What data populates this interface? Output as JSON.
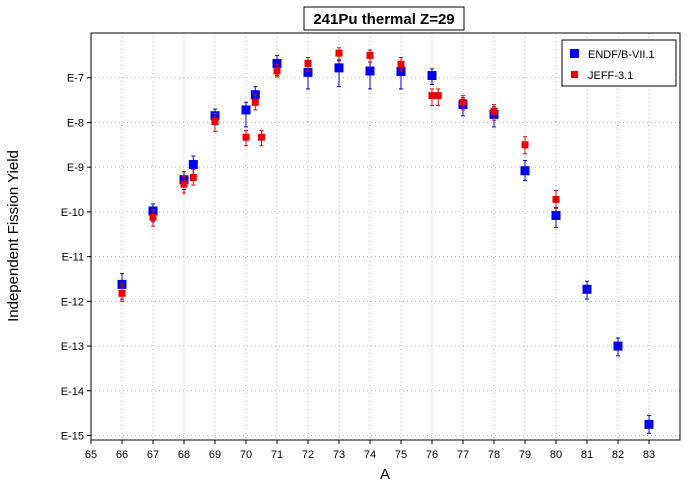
{
  "chart_data": {
    "type": "scatter",
    "title": "241Pu thermal Z=29",
    "xlabel": "A",
    "ylabel": "Independent Fission Yield",
    "xlim": [
      65,
      84
    ],
    "ylim": [
      -15.1,
      -6.0
    ],
    "y_scale": "log",
    "x_ticks": [
      "65",
      "66",
      "67",
      "68",
      "69",
      "70",
      "71",
      "72",
      "73",
      "74",
      "75",
      "76",
      "77",
      "78",
      "79",
      "80",
      "81",
      "82",
      "83"
    ],
    "y_ticks": [
      {
        "exp": -7,
        "label": "E-7"
      },
      {
        "exp": -8,
        "label": "E-8"
      },
      {
        "exp": -9,
        "label": "E-9"
      },
      {
        "exp": -10,
        "label": "E-10"
      },
      {
        "exp": -11,
        "label": "E-11"
      },
      {
        "exp": -12,
        "label": "E-12"
      },
      {
        "exp": -13,
        "label": "E-13"
      },
      {
        "exp": -14,
        "label": "E-14"
      },
      {
        "exp": -15,
        "label": "E-15"
      }
    ],
    "grid": true,
    "legend_position": "top-right",
    "series": [
      {
        "name": "ENDF/B-VII.1",
        "color": "#0000ee",
        "marker_size": 9,
        "points": [
          {
            "x": 66,
            "y": -11.62,
            "lo": -11.95,
            "hi": -11.38
          },
          {
            "x": 67,
            "y": -9.98,
            "lo": -10.22,
            "hi": -9.82
          },
          {
            "x": 68,
            "y": -9.28,
            "lo": -9.5,
            "hi": -9.1
          },
          {
            "x": 68.3,
            "y": -8.94,
            "lo": -9.2,
            "hi": -8.75
          },
          {
            "x": 69,
            "y": -7.85,
            "lo": -8.05,
            "hi": -7.7
          },
          {
            "x": 70,
            "y": -7.72,
            "lo": -8.1,
            "hi": -7.55
          },
          {
            "x": 70.3,
            "y": -7.38,
            "lo": -7.6,
            "hi": -7.2
          },
          {
            "x": 71,
            "y": -6.68,
            "lo": -6.95,
            "hi": -6.5
          },
          {
            "x": 72,
            "y": -6.88,
            "lo": -7.25,
            "hi": -6.7
          },
          {
            "x": 73,
            "y": -6.78,
            "lo": -7.2,
            "hi": -6.62
          },
          {
            "x": 74,
            "y": -6.85,
            "lo": -7.25,
            "hi": -6.65
          },
          {
            "x": 75,
            "y": -6.86,
            "lo": -7.25,
            "hi": -6.68
          },
          {
            "x": 76,
            "y": -6.95,
            "lo": -7.15,
            "hi": -6.8
          },
          {
            "x": 77,
            "y": -7.6,
            "lo": -7.85,
            "hi": -7.45
          },
          {
            "x": 78,
            "y": -7.82,
            "lo": -8.1,
            "hi": -7.65
          },
          {
            "x": 79,
            "y": -9.08,
            "lo": -9.3,
            "hi": -8.85
          },
          {
            "x": 80,
            "y": -10.08,
            "lo": -10.35,
            "hi": -9.9
          },
          {
            "x": 81,
            "y": -11.73,
            "lo": -11.95,
            "hi": -11.55
          },
          {
            "x": 82,
            "y": -13.0,
            "lo": -13.22,
            "hi": -12.82
          },
          {
            "x": 83,
            "y": -14.75,
            "lo": -14.95,
            "hi": -14.55
          }
        ]
      },
      {
        "name": "JEFF-3.1",
        "color": "#ee0000",
        "marker_size": 7,
        "points": [
          {
            "x": 66,
            "y": -11.82,
            "lo": -12.0,
            "hi": -11.62
          },
          {
            "x": 67,
            "y": -10.12,
            "lo": -10.32,
            "hi": -9.95
          },
          {
            "x": 68,
            "y": -9.38,
            "lo": -9.58,
            "hi": -9.2
          },
          {
            "x": 68.3,
            "y": -9.23,
            "lo": -9.4,
            "hi": -9.05
          },
          {
            "x": 69,
            "y": -7.98,
            "lo": -8.2,
            "hi": -7.8
          },
          {
            "x": 70,
            "y": -8.33,
            "lo": -8.52,
            "hi": -8.18
          },
          {
            "x": 70.3,
            "y": -7.55,
            "lo": -7.72,
            "hi": -7.38
          },
          {
            "x": 70.5,
            "y": -8.33,
            "lo": -8.52,
            "hi": -8.18
          },
          {
            "x": 71,
            "y": -6.85,
            "lo": -6.98,
            "hi": -6.7
          },
          {
            "x": 72,
            "y": -6.68,
            "lo": -6.85,
            "hi": -6.55
          },
          {
            "x": 73,
            "y": -6.45,
            "lo": -6.6,
            "hi": -6.33
          },
          {
            "x": 74,
            "y": -6.5,
            "lo": -6.65,
            "hi": -6.38
          },
          {
            "x": 75,
            "y": -6.7,
            "lo": -6.85,
            "hi": -6.55
          },
          {
            "x": 76,
            "y": -7.4,
            "lo": -7.62,
            "hi": -7.25
          },
          {
            "x": 76.2,
            "y": -7.4,
            "lo": -7.62,
            "hi": -7.25
          },
          {
            "x": 77,
            "y": -7.55,
            "lo": -7.72,
            "hi": -7.4
          },
          {
            "x": 78,
            "y": -7.75,
            "lo": -7.95,
            "hi": -7.6
          },
          {
            "x": 79,
            "y": -8.5,
            "lo": -8.7,
            "hi": -8.32
          },
          {
            "x": 80,
            "y": -9.72,
            "lo": -9.92,
            "hi": -9.52
          }
        ]
      }
    ]
  }
}
